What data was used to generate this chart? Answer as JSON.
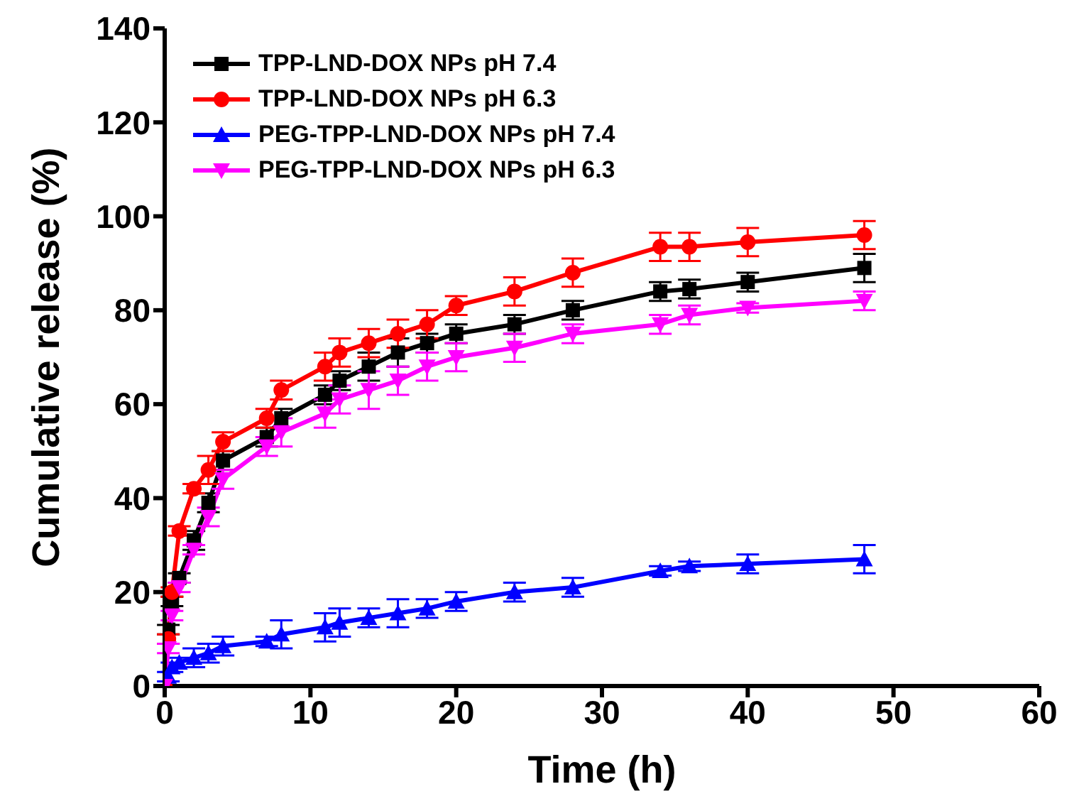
{
  "chart_data": {
    "type": "line",
    "xlabel": "Time (h)",
    "ylabel": "Cumulative release (%)",
    "xlim": [
      0,
      60
    ],
    "xticks": [
      0,
      10,
      20,
      30,
      40,
      50,
      60
    ],
    "ylim": [
      0,
      140
    ],
    "yticks": [
      0,
      20,
      40,
      60,
      80,
      100,
      120,
      140
    ],
    "grid": false,
    "legend": "top left",
    "line_style": "solid",
    "x": [
      0,
      0.25,
      0.5,
      1,
      2,
      3,
      4,
      7,
      8,
      11,
      12,
      14,
      16,
      18,
      20,
      24,
      28,
      34,
      36,
      40,
      48
    ],
    "series": [
      {
        "name": "TPP-LND-DOX NPs pH 7.4",
        "color": "#000000",
        "marker": "square",
        "values": [
          0,
          12,
          18,
          23,
          31,
          39,
          48,
          53,
          57,
          62,
          65,
          68,
          71,
          73,
          75,
          77,
          80,
          84,
          84.5,
          86,
          89
        ],
        "errors": [
          null,
          1,
          1,
          1,
          2,
          2,
          2,
          2,
          2,
          2,
          2,
          3,
          3,
          2,
          2,
          2,
          2,
          2,
          2,
          2,
          3
        ]
      },
      {
        "name": "TPP-LND-DOX NPs pH 6.3",
        "color": "#ff0000",
        "marker": "circle",
        "values": [
          0,
          10,
          20,
          33,
          42,
          46,
          52,
          57,
          63,
          68,
          71,
          73,
          75,
          77,
          81,
          84,
          88,
          93.5,
          93.5,
          94.5,
          96
        ],
        "errors": [
          null,
          1,
          1,
          1,
          1,
          3,
          2,
          2,
          2,
          3,
          3,
          3,
          3,
          3,
          2,
          3,
          3,
          3,
          3,
          3,
          3
        ]
      },
      {
        "name": "PEG-TPP-LND-DOX NPs pH 7.4",
        "color": "#0000ff",
        "marker": "triangle",
        "values": [
          0,
          2,
          4,
          5,
          6,
          7,
          8.5,
          9.5,
          11,
          12.5,
          13.5,
          14.5,
          15.5,
          16.5,
          18,
          20,
          21,
          24.5,
          25.5,
          26,
          27
        ],
        "errors": [
          null,
          1,
          1,
          1,
          2,
          2,
          2,
          1,
          3,
          3,
          3,
          2,
          3,
          2,
          2,
          2,
          2,
          1,
          1,
          2,
          3
        ]
      },
      {
        "name": "PEG-TPP-LND-DOX NPs pH 6.3",
        "color": "#ff00ff",
        "marker": "triangle-down",
        "values": [
          0,
          8,
          15,
          21,
          29,
          36,
          44,
          51,
          54,
          58,
          61,
          63,
          65,
          68,
          70,
          72,
          75,
          77,
          79,
          80.5,
          82
        ],
        "errors": [
          null,
          1,
          1,
          1,
          1,
          2,
          2,
          2,
          3,
          3,
          3,
          4,
          3,
          3,
          3,
          3,
          2,
          2,
          2,
          1,
          2
        ]
      }
    ]
  }
}
